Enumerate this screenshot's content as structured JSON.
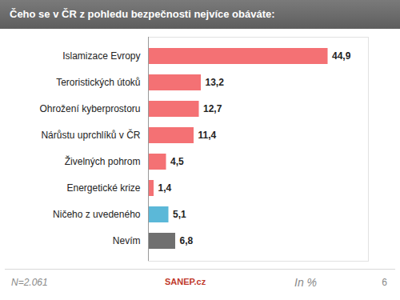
{
  "chart_data": {
    "type": "bar",
    "orientation": "horizontal",
    "title": "Čeho se v ČR z pohledu bezpečnosti nejvíce obáváte:",
    "categories": [
      "Islamizace Evropy",
      "Teroristických útoků",
      "Ohrožení kyberprostoru",
      "Nárůstu uprchlíků v ČR",
      "Živelných pohrom",
      "Energetické krize",
      "Ničeho z uvedeného",
      "Nevím"
    ],
    "values": [
      44.9,
      13.2,
      12.7,
      11.4,
      4.5,
      1.4,
      5.1,
      6.8
    ],
    "value_labels": [
      "44,9",
      "13,2",
      "12,7",
      "11,4",
      "4,5",
      "1,4",
      "5,1",
      "6,8"
    ],
    "colors": [
      "#f47174",
      "#f47174",
      "#f47174",
      "#f47174",
      "#f47174",
      "#f47174",
      "#5bb8d8",
      "#707070"
    ],
    "xlim": [
      0,
      55
    ],
    "xticks": [],
    "xlabel": "In %",
    "tick_labels": "y",
    "data_labels": true,
    "annotations": [
      "N=2.061",
      "SANEP.cz",
      "6"
    ]
  }
}
